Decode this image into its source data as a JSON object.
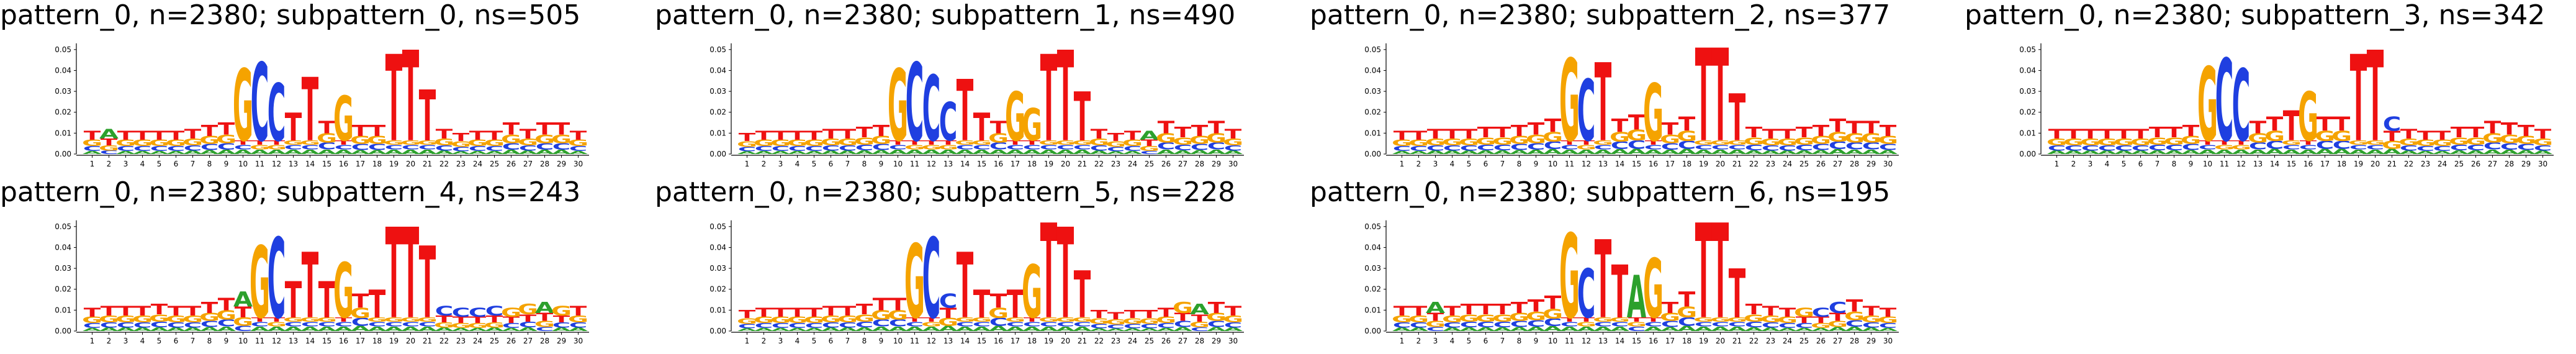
{
  "y_tick_labels": [
    "0.00",
    "0.01",
    "0.02",
    "0.03",
    "0.04",
    "0.05"
  ],
  "x_tick_labels": [
    "1",
    "2",
    "3",
    "4",
    "5",
    "6",
    "7",
    "8",
    "9",
    "10",
    "11",
    "12",
    "13",
    "14",
    "15",
    "16",
    "17",
    "18",
    "19",
    "20",
    "21",
    "22",
    "23",
    "24",
    "25",
    "26",
    "27",
    "28",
    "29",
    "30"
  ],
  "base_colors": {
    "A": "#2ca02c",
    "C": "#1f3fe0",
    "G": "#f5a300",
    "T": "#ee1111"
  },
  "chart_data": [
    {
      "type": "sequence-logo",
      "title": "pattern_0, n=2380; subpattern_0, ns=505",
      "ylim": [
        0,
        0.055
      ],
      "dominant": [
        "T",
        "A",
        "T",
        "T",
        "T",
        "T",
        "T",
        "T",
        "T",
        "G",
        "C",
        "C",
        "T",
        "T",
        "T",
        "G",
        "T",
        "T",
        "T",
        "T",
        "T",
        "T",
        "T",
        "T",
        "T",
        "T",
        "T",
        "T",
        "T",
        "T"
      ],
      "heights": [
        0.011,
        0.012,
        0.011,
        0.011,
        0.011,
        0.011,
        0.012,
        0.014,
        0.015,
        0.041,
        0.044,
        0.034,
        0.02,
        0.037,
        0.016,
        0.028,
        0.014,
        0.014,
        0.048,
        0.05,
        0.031,
        0.012,
        0.01,
        0.011,
        0.011,
        0.015,
        0.012,
        0.015,
        0.015,
        0.011
      ]
    },
    {
      "type": "sequence-logo",
      "title": "pattern_0, n=2380; subpattern_1, ns=490",
      "ylim": [
        0,
        0.055
      ],
      "dominant": [
        "T",
        "T",
        "T",
        "T",
        "T",
        "T",
        "T",
        "T",
        "T",
        "G",
        "C",
        "C",
        "C",
        "T",
        "T",
        "T",
        "G",
        "G",
        "T",
        "T",
        "T",
        "T",
        "T",
        "T",
        "A",
        "T",
        "T",
        "T",
        "T",
        "T"
      ],
      "heights": [
        0.01,
        0.011,
        0.011,
        0.011,
        0.011,
        0.012,
        0.012,
        0.013,
        0.014,
        0.041,
        0.044,
        0.038,
        0.025,
        0.036,
        0.02,
        0.016,
        0.03,
        0.022,
        0.048,
        0.05,
        0.03,
        0.012,
        0.01,
        0.011,
        0.011,
        0.016,
        0.013,
        0.014,
        0.016,
        0.012
      ]
    },
    {
      "type": "sequence-logo",
      "title": "pattern_0, n=2380; subpattern_2, ns=377",
      "ylim": [
        0,
        0.055
      ],
      "dominant": [
        "T",
        "T",
        "T",
        "T",
        "T",
        "T",
        "T",
        "T",
        "T",
        "T",
        "G",
        "C",
        "T",
        "T",
        "T",
        "G",
        "T",
        "T",
        "T",
        "T",
        "T",
        "T",
        "T",
        "T",
        "T",
        "T",
        "T",
        "T",
        "T",
        "T"
      ],
      "heights": [
        0.011,
        0.011,
        0.012,
        0.012,
        0.012,
        0.013,
        0.013,
        0.014,
        0.015,
        0.017,
        0.046,
        0.036,
        0.044,
        0.017,
        0.019,
        0.034,
        0.015,
        0.018,
        0.051,
        0.051,
        0.029,
        0.013,
        0.012,
        0.012,
        0.013,
        0.014,
        0.017,
        0.016,
        0.016,
        0.014
      ]
    },
    {
      "type": "sequence-logo",
      "title": "pattern_0, n=2380; subpattern_3, ns=342",
      "ylim": [
        0,
        0.055
      ],
      "dominant": [
        "T",
        "T",
        "T",
        "T",
        "T",
        "T",
        "T",
        "T",
        "T",
        "G",
        "C",
        "C",
        "T",
        "T",
        "T",
        "G",
        "T",
        "T",
        "T",
        "T",
        "C",
        "T",
        "T",
        "T",
        "T",
        "T",
        "T",
        "T",
        "T",
        "T"
      ],
      "heights": [
        0.012,
        0.012,
        0.012,
        0.012,
        0.012,
        0.012,
        0.013,
        0.013,
        0.014,
        0.042,
        0.046,
        0.041,
        0.016,
        0.018,
        0.021,
        0.03,
        0.018,
        0.018,
        0.048,
        0.05,
        0.018,
        0.012,
        0.011,
        0.011,
        0.013,
        0.013,
        0.016,
        0.015,
        0.014,
        0.012
      ]
    },
    {
      "type": "sequence-logo",
      "title": "pattern_0, n=2380; subpattern_4, ns=243",
      "ylim": [
        0,
        0.055
      ],
      "dominant": [
        "T",
        "T",
        "T",
        "T",
        "T",
        "T",
        "T",
        "T",
        "T",
        "A",
        "G",
        "C",
        "T",
        "T",
        "T",
        "G",
        "T",
        "T",
        "T",
        "T",
        "T",
        "C",
        "C",
        "C",
        "C",
        "G",
        "G",
        "A",
        "G",
        "T"
      ],
      "heights": [
        0.011,
        0.012,
        0.012,
        0.012,
        0.013,
        0.012,
        0.012,
        0.014,
        0.016,
        0.019,
        0.041,
        0.045,
        0.024,
        0.038,
        0.024,
        0.033,
        0.018,
        0.02,
        0.05,
        0.05,
        0.041,
        0.012,
        0.011,
        0.011,
        0.012,
        0.011,
        0.013,
        0.014,
        0.012,
        0.012
      ]
    },
    {
      "type": "sequence-logo",
      "title": "pattern_0, n=2380; subpattern_5, ns=228",
      "ylim": [
        0,
        0.055
      ],
      "dominant": [
        "T",
        "T",
        "T",
        "T",
        "T",
        "T",
        "T",
        "T",
        "T",
        "T",
        "G",
        "C",
        "C",
        "T",
        "T",
        "T",
        "T",
        "G",
        "T",
        "T",
        "T",
        "T",
        "T",
        "T",
        "T",
        "T",
        "G",
        "A",
        "T",
        "T"
      ],
      "heights": [
        0.01,
        0.011,
        0.011,
        0.011,
        0.011,
        0.012,
        0.012,
        0.013,
        0.016,
        0.016,
        0.042,
        0.045,
        0.018,
        0.038,
        0.02,
        0.018,
        0.02,
        0.032,
        0.052,
        0.05,
        0.029,
        0.01,
        0.009,
        0.01,
        0.01,
        0.011,
        0.014,
        0.013,
        0.014,
        0.012
      ]
    },
    {
      "type": "sequence-logo",
      "title": "pattern_0, n=2380; subpattern_6, ns=195",
      "ylim": [
        0,
        0.055
      ],
      "dominant": [
        "T",
        "T",
        "A",
        "T",
        "T",
        "T",
        "T",
        "T",
        "T",
        "T",
        "G",
        "C",
        "T",
        "T",
        "A",
        "G",
        "T",
        "T",
        "T",
        "T",
        "T",
        "T",
        "T",
        "T",
        "G",
        "C",
        "C",
        "T",
        "T",
        "T"
      ],
      "heights": [
        0.012,
        0.012,
        0.014,
        0.012,
        0.013,
        0.013,
        0.013,
        0.014,
        0.015,
        0.017,
        0.047,
        0.03,
        0.044,
        0.032,
        0.027,
        0.035,
        0.014,
        0.019,
        0.052,
        0.052,
        0.03,
        0.013,
        0.012,
        0.011,
        0.011,
        0.011,
        0.014,
        0.015,
        0.012,
        0.011
      ]
    }
  ]
}
